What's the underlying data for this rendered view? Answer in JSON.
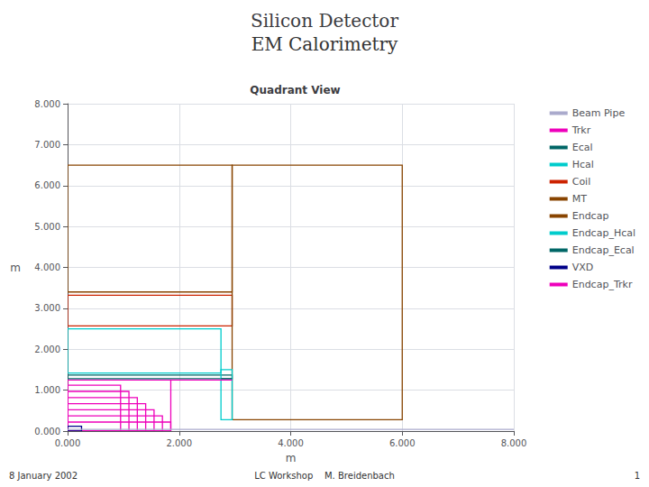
{
  "chart_data": {
    "type": "rectangles",
    "title": "Silicon Detector",
    "subtitle": "EM Calorimetry",
    "annotations": [
      "Quadrant View",
      "8 January 2002",
      "LC Workshop    M. Breidenbach",
      "1"
    ],
    "xlabel": "m",
    "ylabel": "m",
    "xlim": [
      0.0,
      8.0
    ],
    "ylim": [
      0.0,
      8.0
    ],
    "xticks": [
      {
        "value": 0,
        "label": "0.000"
      },
      {
        "value": 2,
        "label": "2.000"
      },
      {
        "value": 4,
        "label": "4.000"
      },
      {
        "value": 6,
        "label": "6.000"
      },
      {
        "value": 8,
        "label": "8.000"
      }
    ],
    "yticks": [
      {
        "value": 0,
        "label": "0.000"
      },
      {
        "value": 1,
        "label": "1.000"
      },
      {
        "value": 2,
        "label": "2.000"
      },
      {
        "value": 3,
        "label": "3.000"
      },
      {
        "value": 4,
        "label": "4.000"
      },
      {
        "value": 5,
        "label": "5.000"
      },
      {
        "value": 6,
        "label": "6.000"
      },
      {
        "value": 7,
        "label": "7.000"
      },
      {
        "value": 8,
        "label": "8.000"
      }
    ],
    "grid": true,
    "legend": "right",
    "series": [
      {
        "name": "Beam Pipe",
        "color": "#aaaacc",
        "type": "line",
        "x": [
          0.0,
          8.0
        ],
        "y": [
          0.04,
          0.04
        ]
      },
      {
        "name": "Trkr",
        "color": "#ee00bb",
        "type": "rect",
        "rects": [
          [
            0.0,
            0.0,
            1.85,
            0.22
          ],
          [
            0.0,
            0.0,
            1.7,
            0.37
          ],
          [
            0.0,
            0.0,
            1.55,
            0.52
          ],
          [
            0.0,
            0.0,
            1.4,
            0.67
          ],
          [
            0.0,
            0.0,
            1.25,
            0.82
          ],
          [
            0.0,
            0.0,
            1.1,
            0.97
          ],
          [
            0.0,
            0.0,
            0.95,
            1.12
          ],
          [
            0.0,
            0.0,
            1.85,
            1.25
          ]
        ]
      },
      {
        "name": "Ecal",
        "color": "#006666",
        "type": "rect",
        "rects": [
          [
            0.0,
            1.28,
            2.95,
            0.09
          ]
        ]
      },
      {
        "name": "Hcal",
        "color": "#00cccc",
        "type": "rect",
        "rects": [
          [
            0.0,
            1.42,
            2.75,
            1.08
          ]
        ]
      },
      {
        "name": "Coil",
        "color": "#cc2200",
        "type": "rect",
        "rects": [
          [
            0.0,
            2.57,
            2.95,
            0.75
          ]
        ]
      },
      {
        "name": "MT",
        "color": "#884400",
        "type": "rect",
        "rects": [
          [
            0.0,
            3.4,
            2.95,
            3.1
          ]
        ]
      },
      {
        "name": "Endcap",
        "color": "#884400",
        "type": "rect",
        "rects": [
          [
            2.95,
            0.28,
            3.05,
            6.22
          ]
        ]
      },
      {
        "name": "Endcap_Hcal",
        "color": "#00cccc",
        "type": "rect",
        "rects": [
          [
            2.75,
            0.28,
            0.2,
            1.22
          ]
        ]
      },
      {
        "name": "Endcap_Ecal",
        "color": "#006666",
        "type": "line",
        "x": [
          2.75,
          2.95
        ],
        "y": [
          1.28,
          1.28
        ]
      },
      {
        "name": "VXD",
        "color": "#000088",
        "type": "rect",
        "rects": [
          [
            0.0,
            0.0,
            0.25,
            0.12
          ]
        ]
      },
      {
        "name": "Endcap_Trkr",
        "color": "#ee00bb",
        "type": "line",
        "x": [
          1.85,
          2.95
        ],
        "y": [
          1.25,
          1.25
        ]
      }
    ]
  }
}
